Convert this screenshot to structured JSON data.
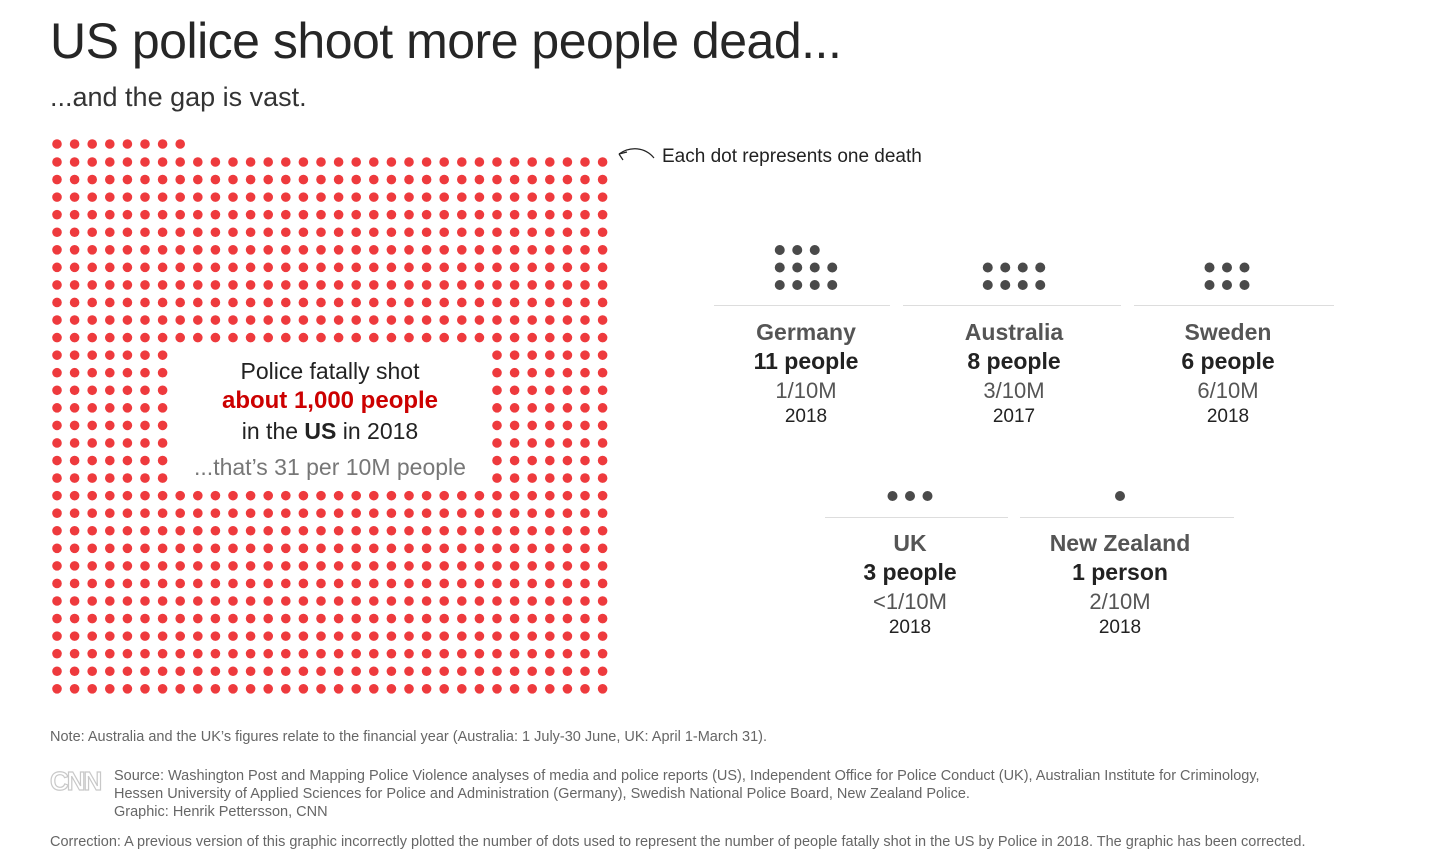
{
  "header": {
    "title": "US police shoot more people dead...",
    "subtitle": "...and the gap is vast."
  },
  "callout": "Each dot represents one death",
  "us": {
    "line1": "Police fatally shot",
    "line2": "about 1,000 people",
    "line3_pre": "in the ",
    "line3_bold": "US",
    "line3_post": " in 2018",
    "rate": "...that’s 31 per 10M people"
  },
  "colors": {
    "us_dot": "#ee3a3d",
    "other_dot": "#4a4a4a",
    "highlight": "#cc0000"
  },
  "chart_data": {
    "type": "dot",
    "unit": "one dot = one death",
    "series": [
      {
        "name": "US",
        "deaths": 1000,
        "rate": "31 per 10M",
        "year": "2018"
      },
      {
        "name": "Germany",
        "deaths": 11,
        "rate": "1/10M",
        "year": "2018"
      },
      {
        "name": "Australia",
        "deaths": 8,
        "rate": "3/10M",
        "year": "2017"
      },
      {
        "name": "Sweden",
        "deaths": 6,
        "rate": "6/10M",
        "year": "2018"
      },
      {
        "name": "UK",
        "deaths": 3,
        "rate": "<1/10M",
        "year": "2018"
      },
      {
        "name": "New Zealand",
        "deaths": 1,
        "rate": "2/10M",
        "year": "2018"
      }
    ]
  },
  "countries": [
    {
      "name": "Germany",
      "people": "11 people",
      "rate": "1/10M",
      "year": "2018"
    },
    {
      "name": "Australia",
      "people": "8 people",
      "rate": "3/10M",
      "year": "2017"
    },
    {
      "name": "Sweden",
      "people": "6 people",
      "rate": "6/10M",
      "year": "2018"
    },
    {
      "name": "UK",
      "people": "3 people",
      "rate": "<1/10M",
      "year": "2018"
    },
    {
      "name": "New Zealand",
      "people": "1 person",
      "rate": "2/10M",
      "year": "2018"
    }
  ],
  "footer": {
    "note": "Note: Australia and the UK’s figures relate to the financial year (Australia: 1 July-30 June, UK: April 1-March 31).",
    "logo": "CNN",
    "source1": "Source: Washington Post and Mapping Police Violence analyses of media and police reports (US), Independent Office for Police Conduct (UK), Australian Institute for Criminology,",
    "source2": "Hessen University of Applied Sciences for Police and Administration (Germany), Swedish National Police Board, New Zealand Police.",
    "graphic": "Graphic: Henrik Pettersson, CNN",
    "correction": "Correction: A previous version of this graphic incorrectly plotted the number of dots used to represent the number of people fatally shot in the US by Police in 2018. The graphic has been corrected."
  }
}
